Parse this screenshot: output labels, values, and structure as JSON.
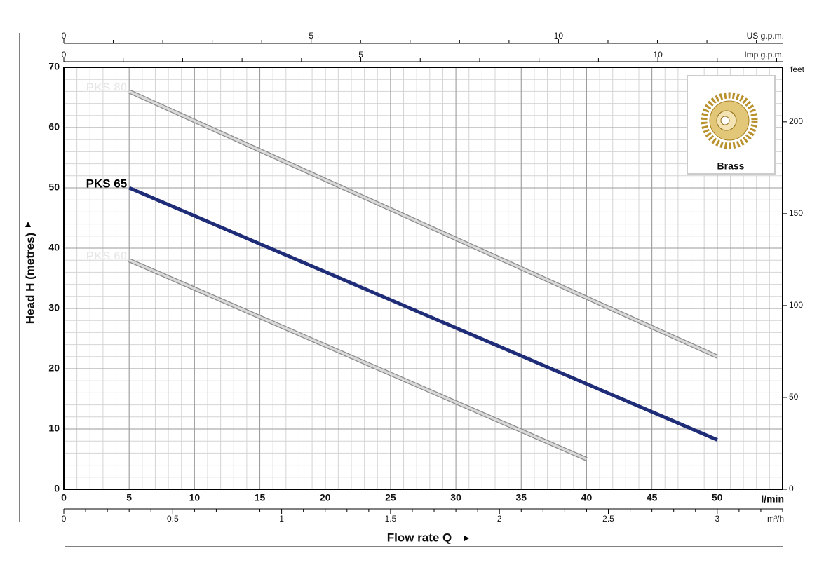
{
  "chart_data": {
    "type": "line",
    "y_label": "Head H (metres)",
    "x_label": "Flow rate Q",
    "x_unit": "l/min",
    "y2_label": "feet",
    "inset_label": "Brass",
    "xlim": [
      0,
      55
    ],
    "xticks": [
      0,
      5,
      10,
      15,
      20,
      25,
      30,
      35,
      40,
      45,
      50
    ],
    "x_minor_grid": [
      0,
      1,
      2,
      3,
      4,
      5,
      6,
      7,
      8,
      9,
      10,
      11,
      12,
      13,
      14,
      15,
      16,
      17,
      18,
      19,
      20,
      21,
      22,
      23,
      24,
      25,
      26,
      27,
      28,
      29,
      30,
      31,
      32,
      33,
      34,
      35,
      36,
      37,
      38,
      39,
      40,
      41,
      42,
      43,
      44,
      45,
      46,
      47,
      48,
      49,
      50,
      51,
      52,
      53,
      54,
      55
    ],
    "ylim": [
      0,
      70
    ],
    "yticks": [
      0,
      10,
      20,
      30,
      40,
      50,
      60,
      70
    ],
    "y_minor_grid": [
      0,
      2,
      4,
      6,
      8,
      10,
      12,
      14,
      16,
      18,
      20,
      22,
      24,
      26,
      28,
      30,
      32,
      34,
      36,
      38,
      40,
      42,
      44,
      46,
      48,
      50,
      52,
      54,
      56,
      58,
      60,
      62,
      64,
      66,
      68,
      70
    ],
    "y2lim": [
      0,
      229.7
    ],
    "y2ticks": [
      0,
      50,
      100,
      150,
      200
    ],
    "grid": true,
    "extra_x_axes": [
      {
        "label": "US g.p.m.",
        "lim": [
          0,
          14.53
        ],
        "ticks": [
          0,
          5,
          10
        ],
        "minor_ticks": [
          1,
          2,
          3,
          4,
          6,
          7,
          8,
          9,
          11,
          12,
          13,
          14
        ]
      },
      {
        "label": "Imp g.p.m.",
        "lim": [
          0,
          12.1
        ],
        "ticks": [
          0,
          5,
          10
        ],
        "minor_ticks": [
          1,
          2,
          3,
          4,
          6,
          7,
          8,
          9,
          11,
          12
        ]
      },
      {
        "label": "m³/h",
        "lim": [
          0,
          3.3
        ],
        "ticks": [
          0,
          0.5,
          1,
          1.5,
          2,
          2.5,
          3
        ],
        "minor_ticks": [
          0.1,
          0.2,
          0.3,
          0.4,
          0.6,
          0.7,
          0.8,
          0.9,
          1.1,
          1.2,
          1.3,
          1.4,
          1.6,
          1.7,
          1.8,
          1.9,
          2.1,
          2.2,
          2.3,
          2.4,
          2.6,
          2.7,
          2.8,
          2.9,
          3.1,
          3.2,
          3.3
        ]
      }
    ],
    "series": [
      {
        "name": "PKS 80",
        "color": "#d9d9d9",
        "x": [
          5,
          50
        ],
        "values": [
          66,
          22
        ]
      },
      {
        "name": "PKS 65",
        "color": "#1f2d78",
        "x": [
          5,
          50
        ],
        "values": [
          50,
          8.2
        ]
      },
      {
        "name": "PKS 60",
        "color": "#d9d9d9",
        "x": [
          5,
          40
        ],
        "values": [
          38,
          5
        ]
      }
    ]
  }
}
